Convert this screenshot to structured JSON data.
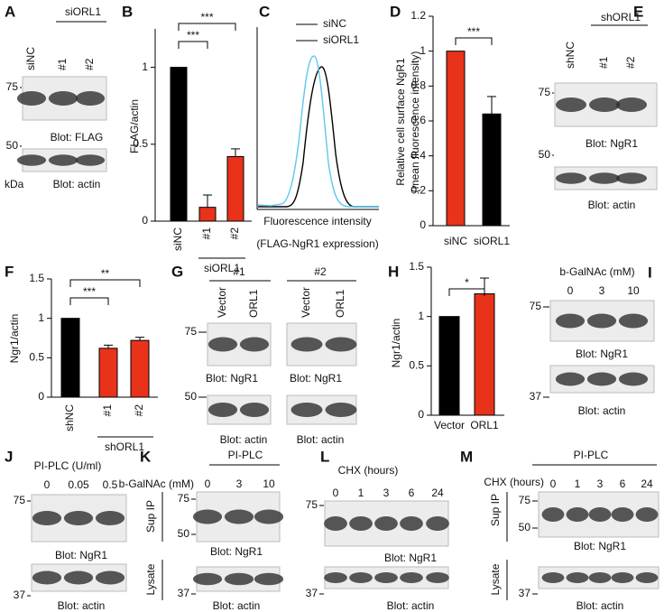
{
  "panels": {
    "A": {
      "label": "A",
      "group": "siORL1",
      "lanes": [
        "siNC",
        "#1",
        "#2"
      ],
      "unit": "kDa",
      "blots": [
        {
          "markers": [
            75
          ],
          "caption": "Blot: FLAG"
        },
        {
          "markers": [
            50
          ],
          "caption": "Blot: actin"
        }
      ]
    },
    "C": {
      "label": "C",
      "legend": [
        {
          "name": "siNC",
          "color": "#000000"
        },
        {
          "name": "siORL1",
          "color": "#5bc8f0"
        }
      ],
      "xlabel": "Fluorescence intensity",
      "note": "(FLAG-NgR1 expression)"
    },
    "E": {
      "label": "E",
      "group": "shORL1",
      "lanes": [
        "shNC",
        "#1",
        "#2"
      ],
      "blots": [
        {
          "markers": [
            75
          ],
          "caption": "Blot: NgR1"
        },
        {
          "markers": [
            50
          ],
          "caption": "Blot: actin"
        }
      ]
    },
    "G": {
      "label": "G",
      "groups": [
        {
          "name": "#1",
          "lanes": [
            "Vector",
            "ORL1"
          ]
        },
        {
          "name": "#2",
          "lanes": [
            "Vector",
            "ORL1"
          ]
        }
      ],
      "blots": [
        {
          "markers": [
            75
          ],
          "captions": [
            "Blot: NgR1",
            "Blot: NgR1"
          ]
        },
        {
          "markers": [
            50
          ],
          "captions": [
            "Blot: actin",
            "Blot: actin"
          ]
        }
      ]
    },
    "I": {
      "label": "I",
      "treatment": "b-GalNAc (mM)",
      "lanes": [
        "0",
        "3",
        "10"
      ],
      "blots": [
        {
          "markers": [
            75
          ],
          "caption": "Blot: NgR1"
        },
        {
          "markers": [
            37
          ],
          "caption": "Blot: actin"
        }
      ]
    },
    "J": {
      "label": "J",
      "treatment": "PI-PLC (U/ml)",
      "lanes": [
        "0",
        "0.05",
        "0.5"
      ],
      "blots": [
        {
          "markers": [
            75
          ],
          "caption": "Blot: NgR1"
        },
        {
          "markers": [
            37
          ],
          "caption": "Blot: actin"
        }
      ]
    },
    "K": {
      "label": "K",
      "group": "PI-PLC",
      "treatment": "b-GalNAc (mM)",
      "lanes": [
        "0",
        "3",
        "10"
      ],
      "blots": [
        {
          "section": "Sup IP",
          "markers": [
            75,
            50
          ],
          "caption": "Blot: NgR1"
        },
        {
          "section": "Lysate",
          "markers": [
            37
          ],
          "caption": "Blot: actin"
        }
      ]
    },
    "L": {
      "label": "L",
      "treatment": "CHX (hours)",
      "lanes": [
        "0",
        "1",
        "3",
        "6",
        "24"
      ],
      "blots": [
        {
          "markers": [
            75
          ],
          "caption": "Blot: NgR1"
        },
        {
          "markers": [
            37
          ],
          "caption": "Blot: actin"
        }
      ]
    },
    "M": {
      "label": "M",
      "group": "PI-PLC",
      "treatment": "CHX (hours)",
      "lanes": [
        "0",
        "1",
        "3",
        "6",
        "24"
      ],
      "blots": [
        {
          "section": "Sup IP",
          "markers": [
            75,
            50
          ],
          "caption": "Blot: NgR1"
        },
        {
          "section": "Lysate",
          "markers": [
            37
          ],
          "caption": "Blot: actin"
        }
      ]
    }
  },
  "chart_data": [
    {
      "type": "bar",
      "label": "B",
      "ylabel": "FLAG/actin",
      "categories": [
        "siNC",
        "#1",
        "#2"
      ],
      "group": "siORL1",
      "values": [
        1,
        0.09,
        0.42
      ],
      "errors": [
        0,
        0.08,
        0.05
      ],
      "colors": [
        "#000000",
        "#e8321a",
        "#e8321a"
      ],
      "ylim": [
        0,
        1.25
      ],
      "yticks": [
        0,
        0.5,
        1
      ],
      "significance": [
        {
          "pair": [
            0,
            1
          ],
          "label": "***"
        },
        {
          "pair": [
            0,
            2
          ],
          "label": "***"
        }
      ]
    },
    {
      "type": "bar",
      "label": "D",
      "ylabel": [
        "Relative cell surface NgR1",
        "(mean fluorescence intensity)"
      ],
      "categories": [
        "siNC",
        "siORL1"
      ],
      "values": [
        1,
        0.64
      ],
      "errors": [
        0,
        0.1
      ],
      "colors": [
        "#e8321a",
        "#000000"
      ],
      "ylim": [
        0,
        1.2
      ],
      "yticks": [
        0,
        0.2,
        0.4,
        0.6,
        0.8,
        1,
        1.2
      ],
      "significance": [
        {
          "pair": [
            0,
            1
          ],
          "label": "***"
        }
      ]
    },
    {
      "type": "bar",
      "label": "F",
      "ylabel": "Ngr1/actin",
      "categories": [
        "shNC",
        "#1",
        "#2"
      ],
      "group": "shORL1",
      "values": [
        1,
        0.62,
        0.72
      ],
      "errors": [
        0,
        0.04,
        0.04
      ],
      "colors": [
        "#000000",
        "#e8321a",
        "#e8321a"
      ],
      "ylim": [
        0,
        1.5
      ],
      "yticks": [
        0,
        0.5,
        1,
        1.5
      ],
      "significance": [
        {
          "pair": [
            0,
            1
          ],
          "label": "***"
        },
        {
          "pair": [
            0,
            2
          ],
          "label": "**"
        }
      ]
    },
    {
      "type": "bar",
      "label": "H",
      "ylabel": "Ngr1/actin",
      "categories": [
        "Vector",
        "ORL1"
      ],
      "values": [
        1,
        1.23
      ],
      "errors": [
        0,
        0.16
      ],
      "colors": [
        "#000000",
        "#e8321a"
      ],
      "ylim": [
        0,
        1.5
      ],
      "yticks": [
        0,
        0.5,
        1,
        1.5
      ],
      "significance": [
        {
          "pair": [
            0,
            1
          ],
          "label": "*"
        }
      ]
    }
  ]
}
